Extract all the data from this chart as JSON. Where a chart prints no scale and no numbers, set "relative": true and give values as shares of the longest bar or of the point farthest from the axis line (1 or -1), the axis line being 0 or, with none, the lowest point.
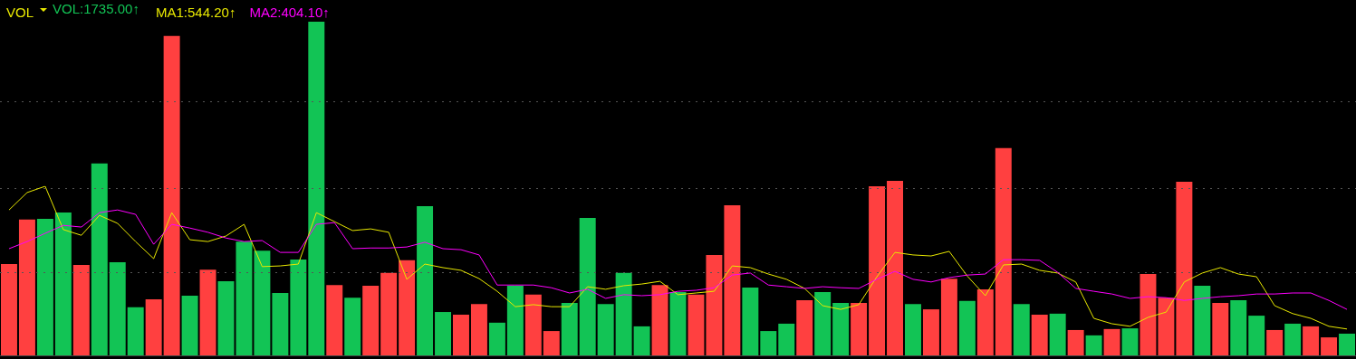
{
  "chart_data": [
    {
      "type": "bar",
      "title": "VOL",
      "annotations": [
        "VOL:1735.00↑"
      ],
      "relative": true,
      "ref_lines": [
        {
          "axis": "y",
          "value": 0.252,
          "color": "#555555",
          "line_style": "dotted"
        },
        {
          "axis": "y",
          "value": 0.504,
          "color": "#555555",
          "line_style": "dotted"
        },
        {
          "axis": "y",
          "value": 0.759,
          "color": "#555555",
          "line_style": "dotted"
        }
      ],
      "categories": [
        null,
        null,
        null,
        null,
        null,
        null,
        null,
        null,
        null,
        null,
        null,
        null,
        null,
        null,
        null,
        null,
        null,
        null,
        null,
        null,
        null,
        null,
        null,
        null,
        null,
        null,
        null,
        null,
        null,
        null,
        null,
        null,
        null,
        null,
        null,
        null,
        null,
        null,
        null,
        null,
        null,
        null,
        null,
        null,
        null,
        null,
        null,
        null,
        null,
        null,
        null,
        null,
        null,
        null,
        null,
        null,
        null,
        null,
        null,
        null,
        null,
        null,
        null,
        null,
        null,
        null,
        null,
        null,
        null,
        null,
        null,
        null,
        null,
        null,
        null
      ],
      "series": [
        {
          "color": "#12c455",
          "values": [
            0.274,
            0.407,
            0.409,
            0.428,
            0.271,
            0.575,
            0.279,
            0.144,
            0.168,
            0.957,
            0.179,
            0.257,
            0.222,
            0.341,
            0.314,
            0.187,
            0.287,
            1.0,
            0.211,
            0.173,
            0.209,
            0.247,
            0.285,
            0.447,
            0.13,
            0.122,
            0.154,
            0.098,
            0.209,
            0.182,
            0.073,
            0.157,
            0.412,
            0.154,
            0.247,
            0.087,
            0.211,
            0.19,
            0.182,
            0.301,
            0.45,
            0.203,
            0.073,
            0.095,
            0.165,
            0.19,
            0.157,
            0.157,
            0.507,
            0.523,
            0.154,
            0.138,
            0.23,
            0.163,
            0.198,
            0.621,
            0.154,
            0.122,
            0.125,
            0.076,
            0.06,
            0.079,
            0.081,
            0.244,
            0.173,
            0.52,
            0.209,
            0.157,
            0.165,
            0.119,
            0.076,
            0.095,
            0.087,
            0.054,
            0.065
          ],
          "colors": [
            "#ff4040",
            "#ff4040",
            "#12c455",
            "#12c455",
            "#ff4040",
            "#12c455",
            "#12c455",
            "#12c455",
            "#ff4040",
            "#ff4040",
            "#12c455",
            "#ff4040",
            "#12c455",
            "#12c455",
            "#12c455",
            "#12c455",
            "#12c455",
            "#12c455",
            "#ff4040",
            "#12c455",
            "#ff4040",
            "#ff4040",
            "#ff4040",
            "#12c455",
            "#12c455",
            "#ff4040",
            "#ff4040",
            "#12c455",
            "#12c455",
            "#ff4040",
            "#ff4040",
            "#12c455",
            "#12c455",
            "#12c455",
            "#12c455",
            "#12c455",
            "#ff4040",
            "#12c455",
            "#ff4040",
            "#ff4040",
            "#ff4040",
            "#12c455",
            "#12c455",
            "#12c455",
            "#ff4040",
            "#12c455",
            "#12c455",
            "#ff4040",
            "#ff4040",
            "#ff4040",
            "#12c455",
            "#ff4040",
            "#ff4040",
            "#12c455",
            "#ff4040",
            "#ff4040",
            "#12c455",
            "#ff4040",
            "#12c455",
            "#ff4040",
            "#12c455",
            "#ff4040",
            "#12c455",
            "#ff4040",
            "#ff4040",
            "#ff4040",
            "#12c455",
            "#ff4040",
            "#12c455",
            "#12c455",
            "#ff4040",
            "#12c455",
            "#ff4040",
            "#ff4040",
            "#12c455"
          ]
        }
      ]
    },
    {
      "type": "line",
      "relative": true,
      "legend": "top left",
      "marker": "none",
      "line_style": "solid",
      "categories": [
        null,
        null,
        null,
        null,
        null,
        null,
        null,
        null,
        null,
        null,
        null,
        null,
        null,
        null,
        null,
        null,
        null,
        null,
        null,
        null,
        null,
        null,
        null,
        null,
        null,
        null,
        null,
        null,
        null,
        null,
        null,
        null,
        null,
        null,
        null,
        null,
        null,
        null,
        null,
        null,
        null,
        null,
        null,
        null,
        null,
        null,
        null,
        null,
        null,
        null,
        null,
        null,
        null,
        null,
        null,
        null,
        null,
        null,
        null,
        null,
        null,
        null,
        null,
        null,
        null,
        null,
        null,
        null,
        null,
        null,
        null,
        null,
        null,
        null,
        null
      ],
      "series": [
        {
          "name": "MA1:544.20↑",
          "color": "#e8e800",
          "values": [
            0.86,
            0.963,
            1,
            0.744,
            0.71,
            0.828,
            0.781,
            0.673,
            0.572,
            0.844,
            0.684,
            0.673,
            0.706,
            0.775,
            0.525,
            0.529,
            0.54,
            0.844,
            0.791,
            0.738,
            0.748,
            0.728,
            0.45,
            0.54,
            0.519,
            0.503,
            0.454,
            0.379,
            0.288,
            0.3,
            0.288,
            0.288,
            0.406,
            0.391,
            0.412,
            0.422,
            0.438,
            0.359,
            0.369,
            0.379,
            0.529,
            0.519,
            0.481,
            0.45,
            0.396,
            0.294,
            0.272,
            0.3,
            0.465,
            0.609,
            0.594,
            0.588,
            0.615,
            0.469,
            0.353,
            0.535,
            0.54,
            0.503,
            0.487,
            0.434,
            0.219,
            0.187,
            0.172,
            0.225,
            0.256,
            0.434,
            0.487,
            0.519,
            0.481,
            0.465,
            0.294,
            0.247,
            0.219,
            0.172,
            0.156
          ]
        },
        {
          "name": "MA2:404.10↑",
          "color": "#ff00ff",
          "values": [
            0.631,
            0.673,
            0.722,
            0.769,
            0.759,
            0.844,
            0.86,
            0.834,
            0.657,
            0.775,
            0.753,
            0.728,
            0.694,
            0.673,
            0.679,
            0.609,
            0.609,
            0.775,
            0.785,
            0.631,
            0.635,
            0.635,
            0.641,
            0.669,
            0.631,
            0.625,
            0.594,
            0.416,
            0.416,
            0.416,
            0.4,
            0.369,
            0.391,
            0.337,
            0.359,
            0.353,
            0.359,
            0.379,
            0.385,
            0.4,
            0.475,
            0.487,
            0.416,
            0.406,
            0.396,
            0.406,
            0.4,
            0.396,
            0.45,
            0.497,
            0.45,
            0.434,
            0.46,
            0.475,
            0.481,
            0.566,
            0.566,
            0.562,
            0.491,
            0.396,
            0.379,
            0.363,
            0.337,
            0.347,
            0.341,
            0.325,
            0.337,
            0.347,
            0.353,
            0.363,
            0.363,
            0.369,
            0.369,
            0.325,
            0.272
          ]
        }
      ]
    }
  ]
}
